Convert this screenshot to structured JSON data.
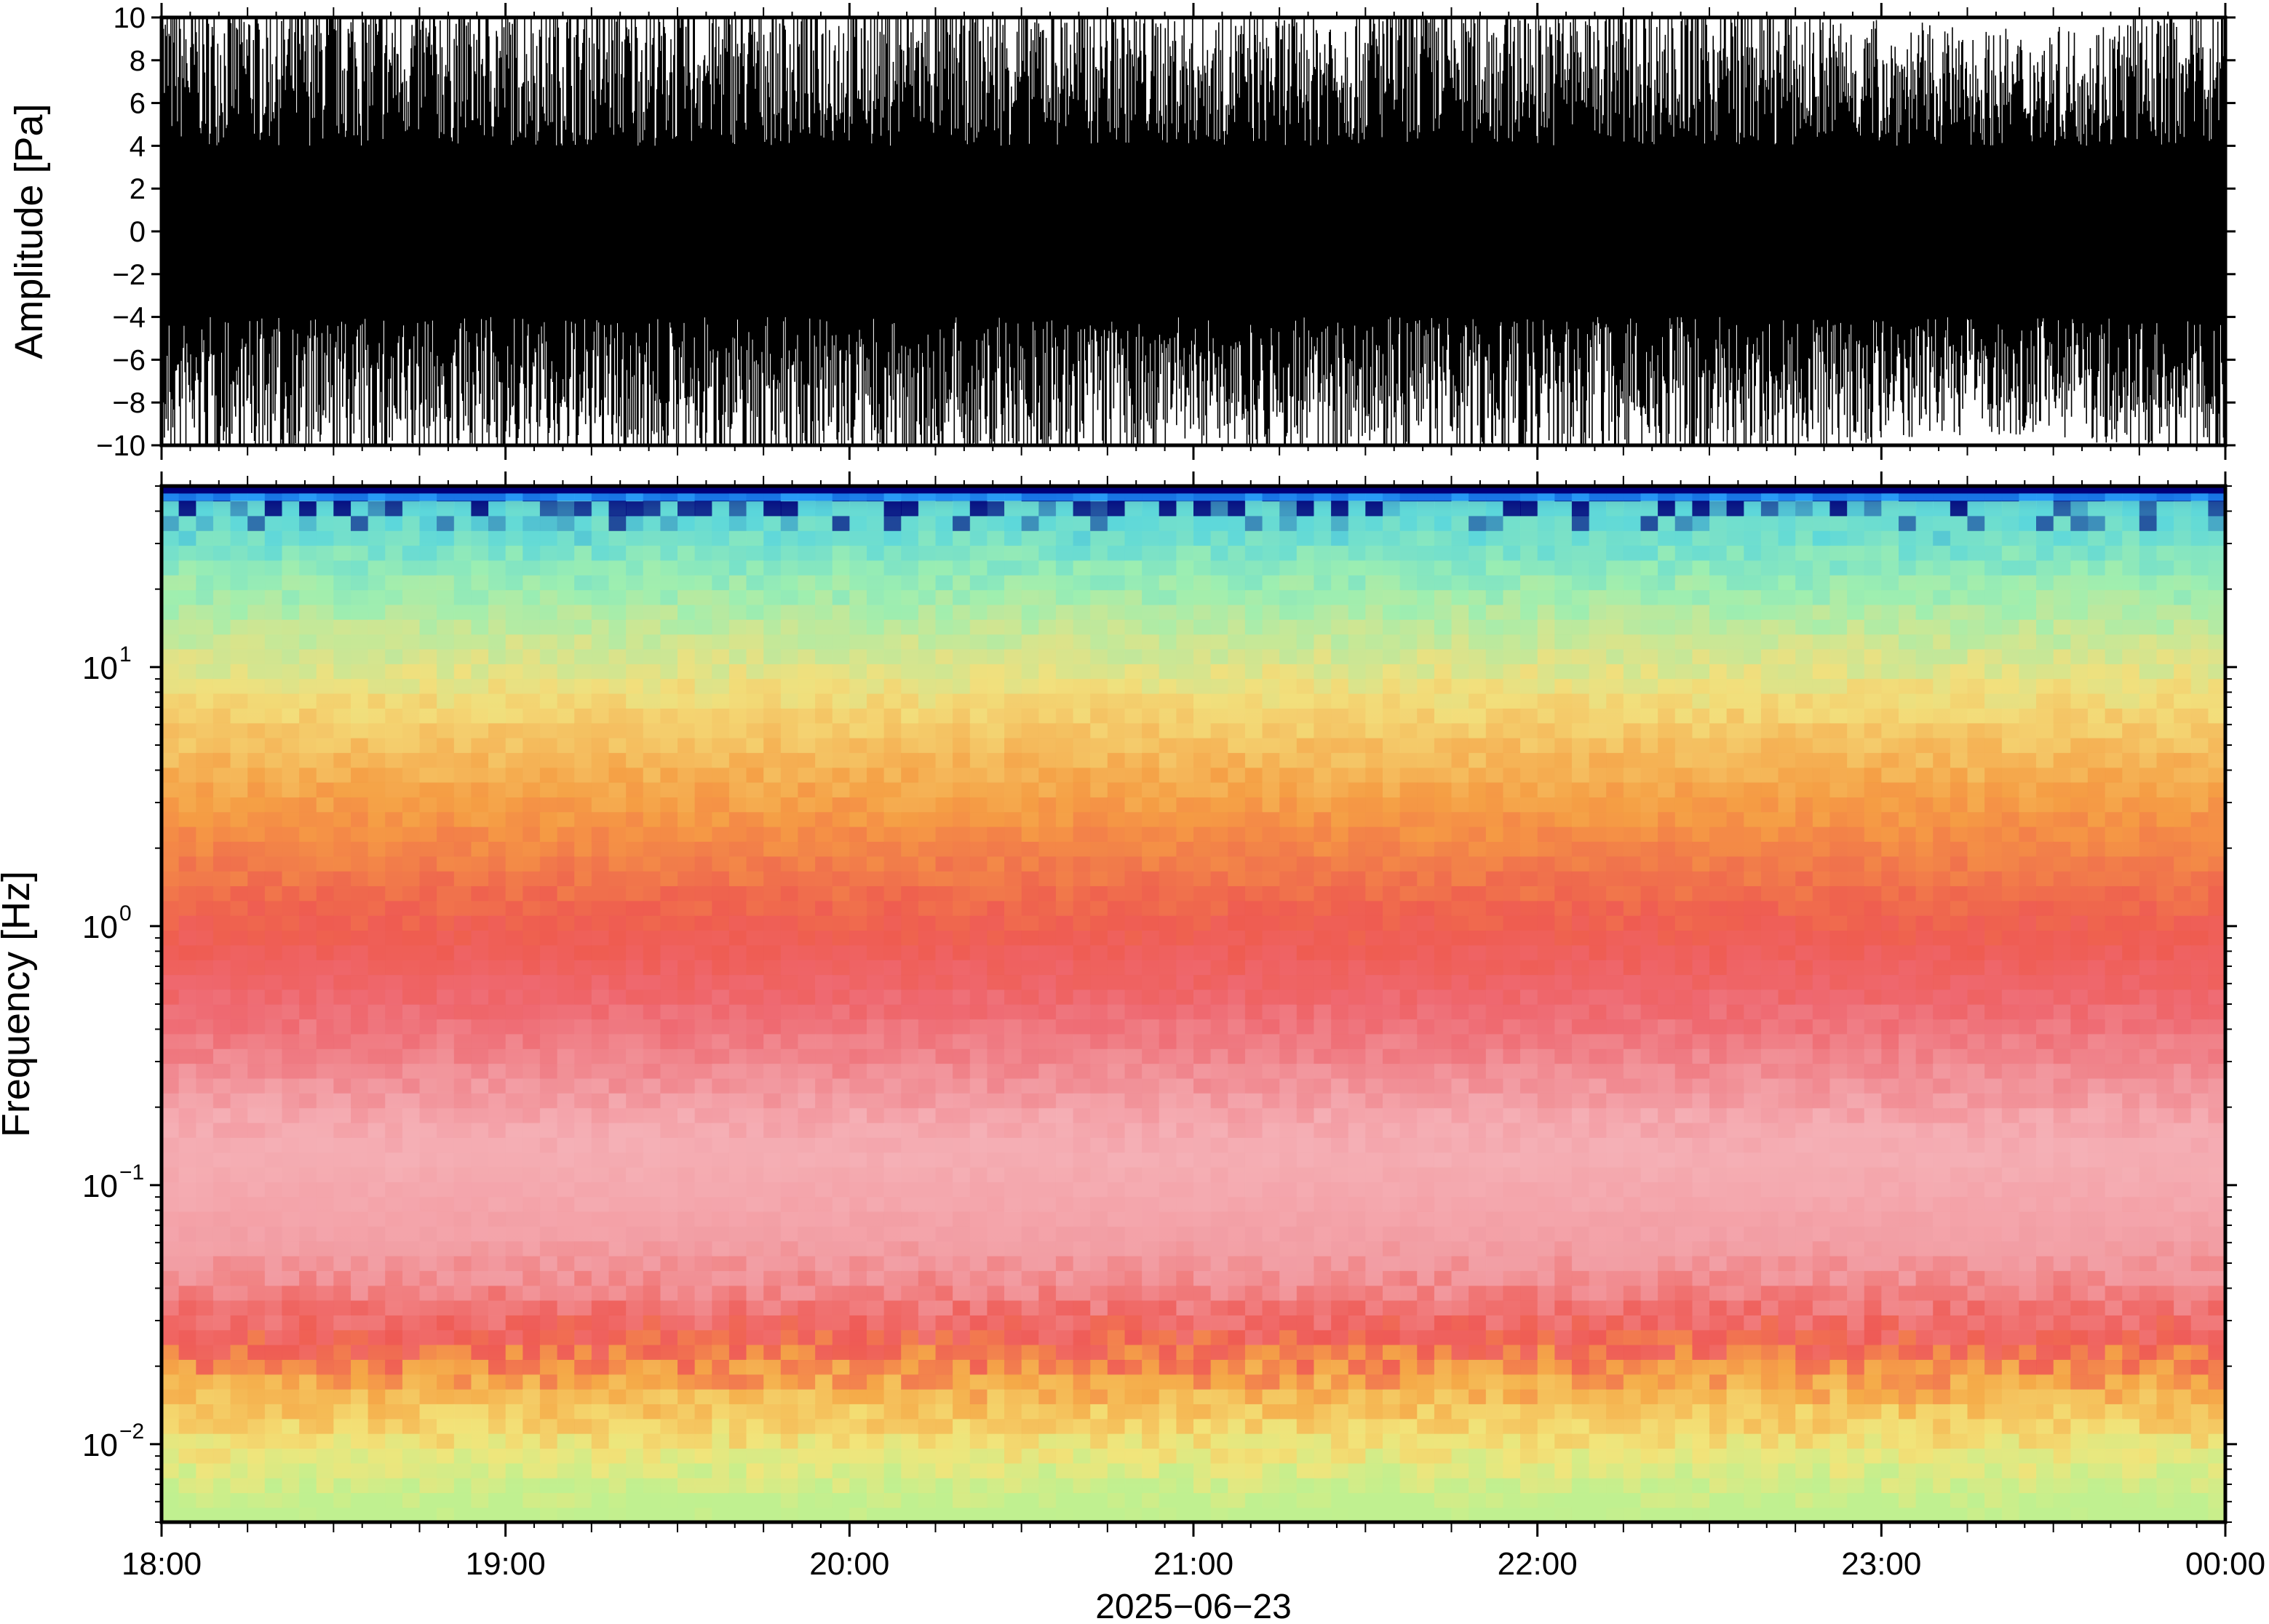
{
  "chart_data": [
    {
      "type": "line",
      "panel": "waveform",
      "ylabel": "Amplitude [Pa]",
      "ylim": [
        -10,
        10
      ],
      "yticks": [
        10,
        8,
        6,
        4,
        2,
        0,
        -2,
        -4,
        -6,
        -8,
        -10
      ],
      "yticklabels": [
        "10",
        "8",
        "6",
        "4",
        "2",
        "0",
        "−2",
        "−4",
        "−6",
        "−8",
        "−10"
      ],
      "series": [
        {
          "color": "#000000",
          "envelope_hours": [
            18.0,
            18.25,
            18.5,
            18.75,
            19.0,
            19.25,
            19.5,
            19.75,
            20.0,
            20.25,
            20.5,
            20.75,
            21.0,
            21.25,
            21.5,
            21.75,
            22.0,
            22.25,
            22.5,
            22.75,
            23.0,
            23.25,
            23.5,
            23.75,
            24.0
          ],
          "envelope_amplitude": [
            10,
            10,
            10,
            10,
            10,
            10,
            10,
            10,
            10,
            10,
            10,
            10,
            9,
            9,
            10,
            10,
            10,
            10,
            10,
            9,
            8.5,
            8,
            8,
            9,
            10
          ]
        }
      ]
    },
    {
      "type": "heatmap",
      "panel": "spectrogram",
      "ylabel": "Frequency [Hz]",
      "yscale": "log",
      "ylim": [
        0.005,
        50
      ],
      "yticks": [
        0.01,
        0.1,
        1,
        10
      ],
      "yticklabels": [
        {
          "base": "10",
          "exp": "−2"
        },
        {
          "base": "10",
          "exp": "−1"
        },
        {
          "base": "10",
          "exp": "0"
        },
        {
          "base": "10",
          "exp": "1"
        }
      ],
      "colormap": [
        "#00007a",
        "#1e90ff",
        "#6ce6d6",
        "#c8f08c",
        "#f7e37a",
        "#f6a040",
        "#ee5a4a",
        "#f09aa0",
        "#f8c8cc"
      ],
      "mean_profile": [
        {
          "freq": 0.006,
          "color": "#bff090"
        },
        {
          "freq": 0.01,
          "color": "#f2e47a"
        },
        {
          "freq": 0.018,
          "color": "#f5a847"
        },
        {
          "freq": 0.025,
          "color": "#ef5a55"
        },
        {
          "freq": 0.05,
          "color": "#f29ca2"
        },
        {
          "freq": 0.15,
          "color": "#f4b0b6"
        },
        {
          "freq": 0.5,
          "color": "#ee6870"
        },
        {
          "freq": 1.0,
          "color": "#ee5c50"
        },
        {
          "freq": 3.0,
          "color": "#f59e44"
        },
        {
          "freq": 8.0,
          "color": "#f2df7c"
        },
        {
          "freq": 20.0,
          "color": "#9eeeb0"
        },
        {
          "freq": 40.0,
          "color": "#5ad6dc"
        },
        {
          "freq": 48.0,
          "color": "#00007a"
        }
      ]
    }
  ],
  "xaxis": {
    "xlim_hours": [
      18,
      24
    ],
    "ticks_hours": [
      18,
      19,
      20,
      21,
      22,
      23,
      24
    ],
    "ticklabels": [
      "18:00",
      "19:00",
      "20:00",
      "21:00",
      "22:00",
      "23:00",
      "00:00"
    ],
    "label": "2025−06−23"
  }
}
